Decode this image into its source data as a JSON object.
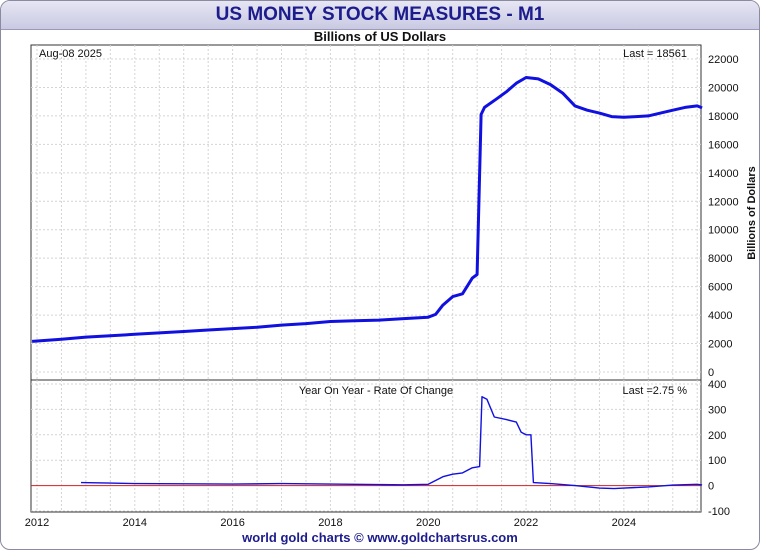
{
  "chart_data": [
    {
      "type": "line",
      "title": "US MONEY STOCK MEASURES - M1",
      "subtitle": "Billions of US Dollars",
      "ylabel": "Billions of Dollars",
      "date_label": "Aug-08  2025",
      "last_label": "Last = 18561",
      "x_ticks": [
        "2012",
        "2014",
        "2016",
        "2018",
        "2020",
        "2022",
        "2024"
      ],
      "y_ticks": [
        0,
        2000,
        4000,
        6000,
        8000,
        10000,
        12000,
        14000,
        16000,
        18000,
        20000,
        22000
      ],
      "ylim": [
        0,
        22000
      ],
      "xlim": [
        2012,
        2025.7
      ],
      "grid": true,
      "color": "#1010e0",
      "series": [
        {
          "x": [
            2011.9,
            2012.5,
            2013.0,
            2013.5,
            2014.0,
            2014.5,
            2015.0,
            2015.5,
            2016.0,
            2016.5,
            2017.0,
            2017.5,
            2018.0,
            2018.5,
            2019.0,
            2019.5,
            2020.0,
            2020.15,
            2020.3,
            2020.5,
            2020.7,
            2020.9,
            2021.0,
            2021.08,
            2021.15,
            2021.4,
            2021.6,
            2021.8,
            2022.0,
            2022.25,
            2022.5,
            2022.75,
            2023.0,
            2023.25,
            2023.5,
            2023.75,
            2024.0,
            2024.25,
            2024.5,
            2024.75,
            2025.0,
            2025.25,
            2025.5,
            2025.6
          ],
          "y": [
            2150,
            2300,
            2450,
            2550,
            2650,
            2750,
            2850,
            2950,
            3050,
            3150,
            3300,
            3400,
            3550,
            3600,
            3650,
            3750,
            3850,
            4050,
            4700,
            5300,
            5500,
            6600,
            6850,
            18100,
            18600,
            19200,
            19700,
            20300,
            20700,
            20600,
            20200,
            19600,
            18700,
            18400,
            18200,
            17950,
            17900,
            17950,
            18000,
            18200,
            18400,
            18600,
            18700,
            18561
          ]
        }
      ]
    },
    {
      "type": "line",
      "title": "Year On Year - Rate Of Change",
      "last_label": "Last =2.75 %",
      "y_ticks": [
        -100,
        0,
        100,
        200,
        300,
        400
      ],
      "ylim": [
        -100,
        400
      ],
      "xlim": [
        2012,
        2025.7
      ],
      "zero_line_color": "#d02020",
      "color": "#1010e0",
      "series": [
        {
          "x": [
            2012.9,
            2013.5,
            2014.0,
            2015.0,
            2016.0,
            2017.0,
            2018.0,
            2019.0,
            2019.5,
            2020.0,
            2020.15,
            2020.3,
            2020.5,
            2020.7,
            2020.9,
            2021.05,
            2021.1,
            2021.2,
            2021.35,
            2021.6,
            2021.8,
            2021.9,
            2022.0,
            2022.1,
            2022.15,
            2022.5,
            2023.0,
            2023.5,
            2023.8,
            2024.0,
            2024.5,
            2025.0,
            2025.5,
            2025.6
          ],
          "y": [
            12,
            10,
            8,
            7,
            6,
            8,
            6,
            4,
            3,
            5,
            20,
            35,
            45,
            50,
            70,
            75,
            350,
            340,
            270,
            260,
            250,
            210,
            200,
            200,
            12,
            8,
            0,
            -10,
            -12,
            -10,
            -5,
            2,
            5,
            2.75
          ]
        }
      ]
    }
  ]
}
